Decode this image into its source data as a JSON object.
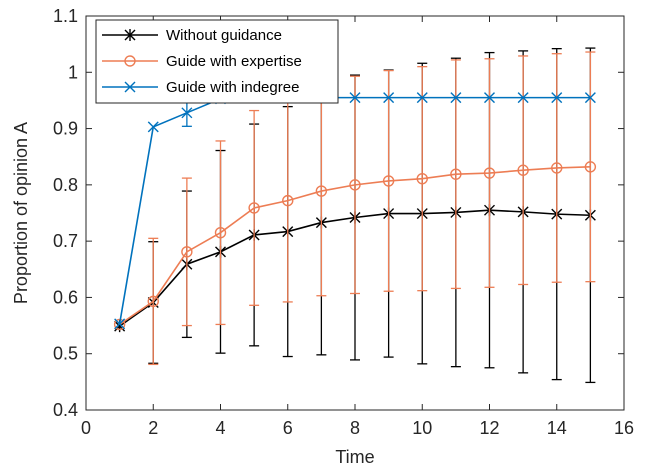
{
  "chart_data": {
    "type": "line",
    "xlabel": "Time",
    "ylabel": "Proportion of opinion A",
    "xlim": [
      0,
      16
    ],
    "ylim": [
      0.4,
      1.1
    ],
    "xticks": [
      0,
      2,
      4,
      6,
      8,
      10,
      12,
      14,
      16
    ],
    "yticks": [
      0.4,
      0.5,
      0.6,
      0.7,
      0.8,
      0.9,
      1,
      1.1
    ],
    "grid": false,
    "legend_position": "top-left",
    "x": [
      1,
      2,
      3,
      4,
      5,
      6,
      7,
      8,
      9,
      10,
      11,
      12,
      13,
      14,
      15
    ],
    "series": [
      {
        "name": "Without guidance",
        "color": "#000000",
        "marker": "asterisk",
        "values": [
          0.549,
          0.591,
          0.659,
          0.681,
          0.711,
          0.717,
          0.733,
          0.742,
          0.749,
          0.749,
          0.751,
          0.755,
          0.752,
          0.748,
          0.746
        ],
        "err": [
          0,
          0.108,
          0.13,
          0.18,
          0.197,
          0.222,
          0.235,
          0.253,
          0.255,
          0.267,
          0.274,
          0.28,
          0.286,
          0.294,
          0.297
        ]
      },
      {
        "name": "Guide with expertise",
        "color": "#ed7d54",
        "marker": "circle",
        "values": [
          0.552,
          0.593,
          0.681,
          0.715,
          0.759,
          0.772,
          0.789,
          0.8,
          0.807,
          0.811,
          0.819,
          0.821,
          0.826,
          0.83,
          0.832
        ],
        "err": [
          0,
          0.112,
          0.131,
          0.163,
          0.173,
          0.18,
          0.186,
          0.193,
          0.196,
          0.199,
          0.203,
          0.203,
          0.203,
          0.203,
          0.204
        ]
      },
      {
        "name": "Guide with indegree",
        "color": "#0072bd",
        "marker": "x",
        "values": [
          0.553,
          0.903,
          0.928,
          0.953,
          0.955,
          0.955,
          0.955,
          0.955,
          0.955,
          0.955,
          0.955,
          0.955,
          0.955,
          0.955,
          0.955
        ],
        "err": [
          0,
          0,
          0.024,
          0,
          0,
          0,
          0,
          0,
          0,
          0,
          0,
          0,
          0,
          0,
          0
        ]
      }
    ]
  }
}
